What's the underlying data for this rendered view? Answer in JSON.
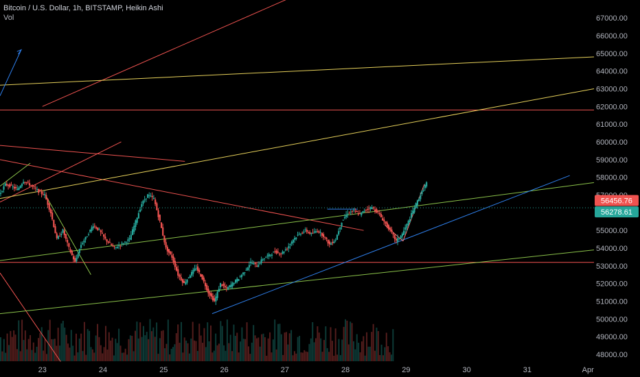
{
  "header": {
    "title": "Bitcoin / U.S. Dollar, 1h, BITSTAMP, Heikin Ashi",
    "indicator": "Vol"
  },
  "colors": {
    "background": "#000000",
    "up": "#26a69a",
    "down": "#ef5350",
    "axis_text": "#b2b5be"
  },
  "price_badges": [
    {
      "label": "56456.76",
      "value": 56456.76,
      "color": "#ef5350"
    },
    {
      "label": "56278.61",
      "value": 56278.61,
      "color": "#26a69a"
    }
  ],
  "chart_data": {
    "type": "candlestick",
    "title": "Bitcoin / U.S. Dollar, 1h, BITSTAMP, Heikin Ashi",
    "y_ticks": [
      "67000.00",
      "66000.00",
      "65000.00",
      "64000.00",
      "63000.00",
      "62000.00",
      "61000.00",
      "60000.00",
      "59000.00",
      "58000.00",
      "57000.00",
      "56000.00",
      "55000.00",
      "54000.00",
      "53000.00",
      "52000.00",
      "51000.00",
      "50000.00",
      "49000.00",
      "48000.00"
    ],
    "x_ticks": [
      "23",
      "24",
      "25",
      "26",
      "27",
      "28",
      "29",
      "30",
      "31",
      "Apr"
    ],
    "ylim": [
      47500,
      67700
    ],
    "xlim": [
      22.3,
      32.1
    ],
    "last_price": 56278.61,
    "close_series": [
      [
        22.3,
        57000
      ],
      [
        22.4,
        57600
      ],
      [
        22.5,
        57500
      ],
      [
        22.6,
        57300
      ],
      [
        22.7,
        57800
      ],
      [
        22.8,
        57600
      ],
      [
        22.95,
        57200
      ],
      [
        23.05,
        57000
      ],
      [
        23.15,
        56000
      ],
      [
        23.25,
        54500
      ],
      [
        23.35,
        55000
      ],
      [
        23.45,
        54000
      ],
      [
        23.55,
        53200
      ],
      [
        23.65,
        54200
      ],
      [
        23.75,
        54700
      ],
      [
        23.85,
        55300
      ],
      [
        23.95,
        55000
      ],
      [
        24.05,
        54500
      ],
      [
        24.2,
        54000
      ],
      [
        24.3,
        54200
      ],
      [
        24.45,
        54500
      ],
      [
        24.55,
        55500
      ],
      [
        24.65,
        56500
      ],
      [
        24.75,
        57000
      ],
      [
        24.85,
        56800
      ],
      [
        24.95,
        55500
      ],
      [
        25.05,
        54000
      ],
      [
        25.15,
        53500
      ],
      [
        25.25,
        52500
      ],
      [
        25.35,
        52000
      ],
      [
        25.45,
        52500
      ],
      [
        25.55,
        52900
      ],
      [
        25.65,
        52300
      ],
      [
        25.75,
        51500
      ],
      [
        25.85,
        51000
      ],
      [
        25.95,
        52000
      ],
      [
        26.05,
        51700
      ],
      [
        26.15,
        52000
      ],
      [
        26.25,
        52300
      ],
      [
        26.35,
        52700
      ],
      [
        26.45,
        53200
      ],
      [
        26.55,
        53000
      ],
      [
        26.65,
        53400
      ],
      [
        26.75,
        53600
      ],
      [
        26.85,
        53800
      ],
      [
        26.95,
        53700
      ],
      [
        27.05,
        54000
      ],
      [
        27.15,
        54500
      ],
      [
        27.25,
        54800
      ],
      [
        27.35,
        55000
      ],
      [
        27.45,
        54800
      ],
      [
        27.55,
        55000
      ],
      [
        27.65,
        54700
      ],
      [
        27.75,
        54200
      ],
      [
        27.85,
        54500
      ],
      [
        27.95,
        55500
      ],
      [
        28.05,
        56000
      ],
      [
        28.15,
        56100
      ],
      [
        28.25,
        55900
      ],
      [
        28.35,
        56200
      ],
      [
        28.45,
        56300
      ],
      [
        28.55,
        56000
      ],
      [
        28.65,
        55500
      ],
      [
        28.75,
        55000
      ],
      [
        28.85,
        54400
      ],
      [
        28.95,
        54800
      ],
      [
        29.05,
        55500
      ],
      [
        29.15,
        56300
      ],
      [
        29.25,
        57000
      ],
      [
        29.35,
        57700
      ]
    ],
    "volume_bars": 60
  },
  "annotations": [
    {
      "type": "trend_line",
      "color": "#ef5350",
      "from": [
        22.3,
        56600
      ],
      "to": [
        24.3,
        60000
      ]
    },
    {
      "type": "trend_line",
      "color": "#ef5350",
      "from": [
        23.0,
        62000
      ],
      "to": [
        28.0,
        69500
      ]
    },
    {
      "type": "trend_line",
      "color": "#ef5350",
      "from": [
        22.3,
        59800
      ],
      "to": [
        25.35,
        58900
      ]
    },
    {
      "type": "trend_line",
      "color": "#ef5350",
      "from": [
        22.3,
        59000
      ],
      "to": [
        28.3,
        55000
      ]
    },
    {
      "type": "trend_line",
      "color": "#ef5350",
      "from": [
        22.3,
        52600
      ],
      "to": [
        23.3,
        47600
      ]
    },
    {
      "type": "horizontal_line",
      "color": "#ef5350",
      "value": 61800
    },
    {
      "type": "horizontal_line",
      "color": "#ef5350",
      "value": 53200
    },
    {
      "type": "trend_line",
      "color": "#e8d25b",
      "from": [
        22.3,
        63200
      ],
      "to": [
        32.1,
        64800
      ]
    },
    {
      "type": "trend_line",
      "color": "#e8d25b",
      "from": [
        22.3,
        56800
      ],
      "to": [
        32.1,
        63000
      ]
    },
    {
      "type": "trend_line",
      "color": "#8bc34a",
      "from": [
        22.3,
        53300
      ],
      "to": [
        32.1,
        57700
      ]
    },
    {
      "type": "trend_line",
      "color": "#8bc34a",
      "from": [
        22.3,
        50300
      ],
      "to": [
        32.1,
        53900
      ]
    },
    {
      "type": "trend_line",
      "color": "#8bc34a",
      "from": [
        22.3,
        57500
      ],
      "to": [
        22.8,
        58800
      ]
    },
    {
      "type": "trend_line",
      "color": "#8bc34a",
      "from": [
        23.05,
        57000
      ],
      "to": [
        23.8,
        52500
      ]
    },
    {
      "type": "trend_line",
      "color": "#2f80ed",
      "from": [
        25.8,
        50300
      ],
      "to": [
        31.7,
        58100
      ]
    },
    {
      "type": "trend_line",
      "color": "#2f80ed",
      "from": [
        27.7,
        56200
      ],
      "to": [
        28.2,
        56200
      ]
    },
    {
      "type": "trend_line",
      "color": "#2f80ed",
      "from": [
        22.3,
        62600
      ],
      "to": [
        22.65,
        65200
      ]
    },
    {
      "type": "trend_line",
      "color": "#ff7a7a",
      "from": [
        28.65,
        55300
      ],
      "to": [
        28.95,
        54400
      ]
    },
    {
      "type": "trend_line",
      "color": "#ff7a7a",
      "from": [
        28.95,
        54400
      ],
      "to": [
        29.3,
        57600
      ]
    }
  ]
}
